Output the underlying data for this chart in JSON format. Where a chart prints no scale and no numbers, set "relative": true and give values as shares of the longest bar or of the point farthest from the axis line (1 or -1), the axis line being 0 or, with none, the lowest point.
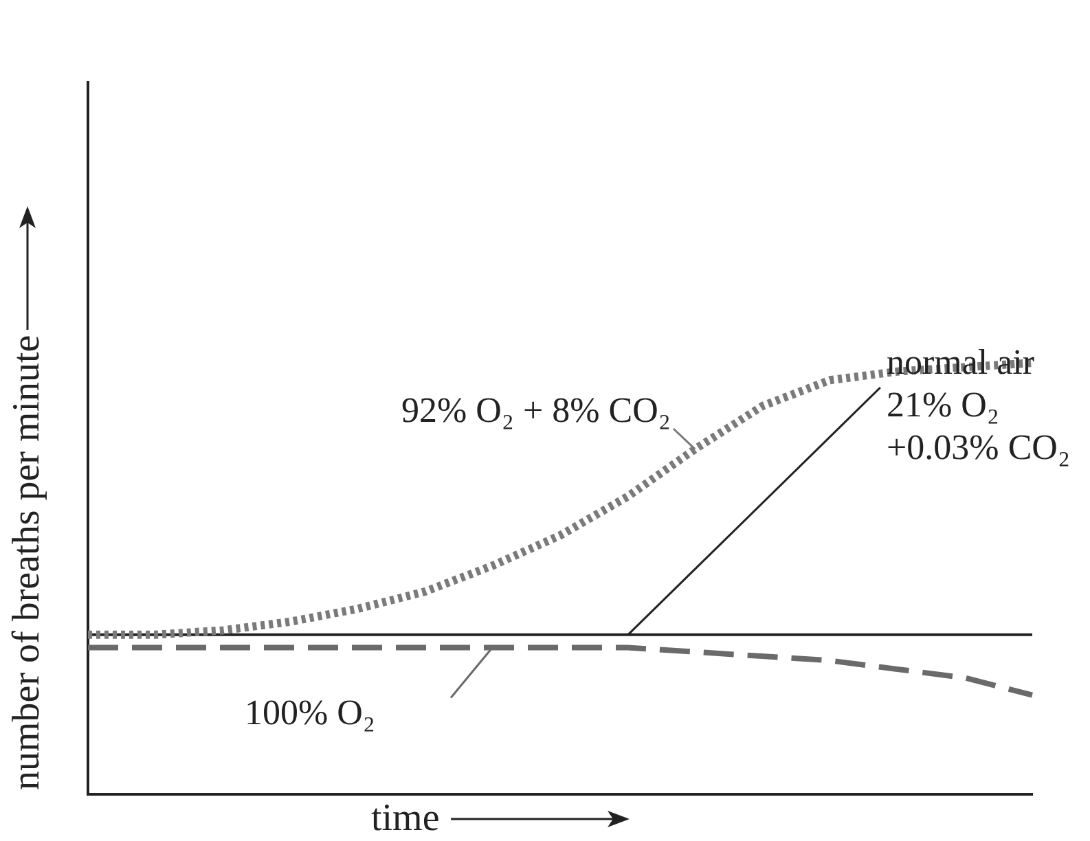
{
  "chart_data": {
    "type": "line",
    "xlabel": "time",
    "ylabel": "number of breaths per minute",
    "relative": true,
    "grid": false,
    "legend": false,
    "marker": "none",
    "tick_labels": false,
    "categories": [
      null,
      null,
      null,
      null,
      null,
      null,
      null,
      null,
      null,
      null,
      null,
      null,
      null,
      null,
      null
    ],
    "series": [
      {
        "name": "92% O₂ + 8% CO₂",
        "color": "#7a7a7a",
        "line_style": "dotted",
        "values": [
          0.37,
          0.37,
          0.38,
          0.4,
          0.43,
          0.47,
          0.53,
          0.6,
          0.69,
          0.8,
          0.9,
          0.96,
          0.98,
          0.99,
          1
        ]
      },
      {
        "name": "normal air\n21% O₂\n+0.03% CO₂",
        "color": "#222222",
        "line_style": "solid",
        "values": [
          0.37,
          0.37,
          0.37,
          0.37,
          0.37,
          0.37,
          0.37,
          0.37,
          0.37,
          0.37,
          0.37,
          0.37,
          0.37,
          0.37,
          0.37
        ]
      },
      {
        "name": "100% O₂",
        "color": "#6a6a6a",
        "line_style": "dashed",
        "values": [
          0.34,
          0.34,
          0.34,
          0.34,
          0.34,
          0.34,
          0.34,
          0.34,
          0.34,
          0.33,
          0.32,
          0.31,
          0.29,
          0.27,
          0.23
        ]
      }
    ]
  }
}
